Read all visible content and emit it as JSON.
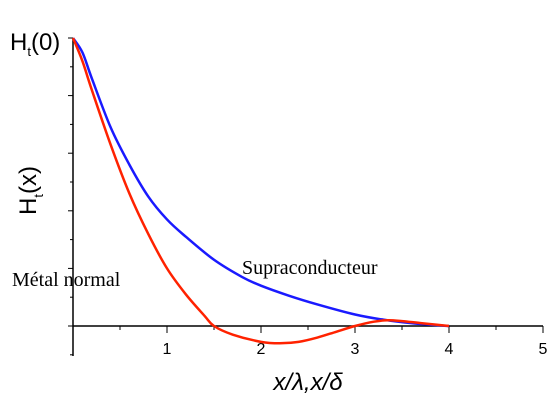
{
  "chart_data": {
    "type": "line",
    "x_tick_labels": [
      "1",
      "2",
      "3",
      "4",
      "5"
    ],
    "x_ticks": [
      1,
      2,
      3,
      4,
      5
    ],
    "xlim": [
      0,
      5
    ],
    "ylim": [
      -0.1,
      1.0
    ],
    "xlabel": "x/λ,x/δ",
    "ylabel_main": "H",
    "ylabel_sub": "t",
    "ylabel_arg": "(x)",
    "y_top_label_main": "H",
    "y_top_label_sub": "t",
    "y_top_label_arg": "(0)",
    "series": [
      {
        "name": "Supraconducteur",
        "color": "#1a1aff",
        "x": [
          0,
          0.1,
          0.2,
          0.4,
          0.6,
          0.8,
          1.0,
          1.2,
          1.5,
          1.8,
          2.0,
          2.3,
          2.6,
          3.0,
          3.3,
          3.6,
          4.0
        ],
        "y": [
          1.0,
          0.95,
          0.86,
          0.69,
          0.56,
          0.45,
          0.37,
          0.31,
          0.23,
          0.17,
          0.14,
          0.105,
          0.075,
          0.04,
          0.022,
          0.01,
          0.0
        ]
      },
      {
        "name": "Métal normal",
        "color": "#ff2200",
        "x": [
          0,
          0.1,
          0.2,
          0.4,
          0.6,
          0.8,
          1.0,
          1.2,
          1.4,
          1.5,
          1.7,
          2.0,
          2.2,
          2.4,
          2.6,
          2.8,
          3.0,
          3.2,
          3.35,
          3.5,
          3.7,
          4.0
        ],
        "y": [
          1.0,
          0.92,
          0.82,
          0.63,
          0.46,
          0.32,
          0.2,
          0.11,
          0.035,
          0.0,
          -0.03,
          -0.055,
          -0.06,
          -0.055,
          -0.04,
          -0.02,
          0.0,
          0.015,
          0.02,
          0.017,
          0.01,
          0.0
        ]
      }
    ],
    "annotations": [
      "Métal normal",
      "Supraconducteur"
    ]
  }
}
